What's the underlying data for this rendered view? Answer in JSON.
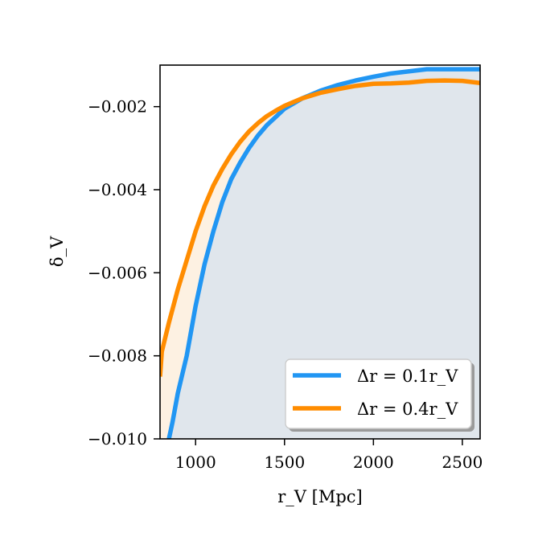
{
  "chart_data": {
    "type": "area",
    "title": "",
    "xlabel": "r_V [Mpc]",
    "ylabel": "δ_V",
    "xlim": [
      800,
      2600
    ],
    "ylim": [
      -0.01,
      -0.001
    ],
    "x_ticks": [
      1000,
      1500,
      2000,
      2500
    ],
    "x_tick_labels": [
      "1000",
      "1500",
      "2000",
      "2500"
    ],
    "y_ticks": [
      -0.01,
      -0.008,
      -0.006,
      -0.004,
      -0.002
    ],
    "y_tick_labels": [
      "−0.010",
      "−0.008",
      "−0.006",
      "−0.004",
      "−0.002"
    ],
    "grid": false,
    "legend_position": "lower right",
    "series": [
      {
        "name": "Δr = 0.1r_V",
        "color": "#2196F3",
        "fill_color": "#E0E6EC",
        "x": [
          850,
          870,
          900,
          950,
          1000,
          1050,
          1100,
          1150,
          1200,
          1250,
          1300,
          1350,
          1400,
          1450,
          1500,
          1600,
          1700,
          1800,
          1900,
          2000,
          2100,
          2200,
          2300,
          2400,
          2500,
          2600
        ],
        "y": [
          -0.01,
          -0.0096,
          -0.0089,
          -0.008,
          -0.0068,
          -0.0058,
          -0.005,
          -0.0043,
          -0.00375,
          -0.00335,
          -0.003,
          -0.0027,
          -0.00245,
          -0.00225,
          -0.00205,
          -0.0018,
          -0.00162,
          -0.00148,
          -0.00137,
          -0.00128,
          -0.0012,
          -0.00115,
          -0.0011,
          -0.0011,
          -0.0011,
          -0.0011
        ]
      },
      {
        "name": "Δr = 0.4r_V",
        "color": "#FF8C00",
        "fill_color": "#FDF1E2",
        "x": [
          800,
          810,
          850,
          900,
          950,
          1000,
          1050,
          1100,
          1150,
          1200,
          1250,
          1300,
          1350,
          1400,
          1450,
          1500,
          1600,
          1700,
          1800,
          1900,
          2000,
          2100,
          2200,
          2300,
          2400,
          2500,
          2600
        ],
        "y": [
          -0.0085,
          -0.0079,
          -0.0072,
          -0.0064,
          -0.0057,
          -0.005,
          -0.0044,
          -0.0039,
          -0.0035,
          -0.00315,
          -0.00285,
          -0.0026,
          -0.0024,
          -0.00223,
          -0.0021,
          -0.00198,
          -0.0018,
          -0.00167,
          -0.00158,
          -0.0015,
          -0.00145,
          -0.00144,
          -0.00142,
          -0.00138,
          -0.00137,
          -0.00138,
          -0.00143
        ]
      }
    ]
  }
}
